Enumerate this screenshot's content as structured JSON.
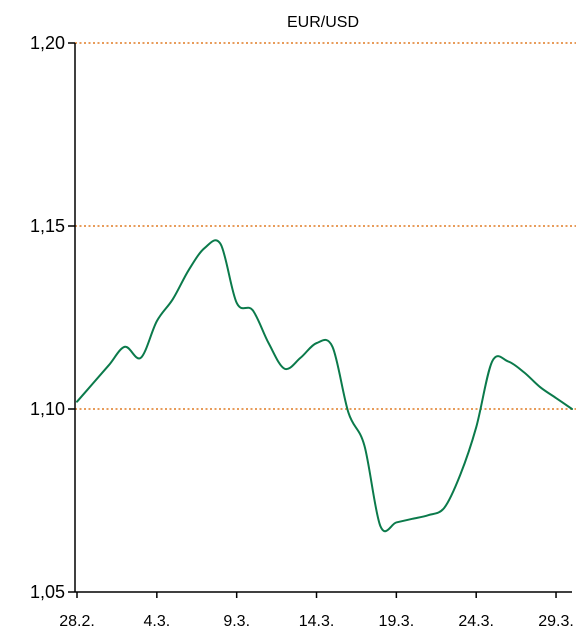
{
  "chart_data": {
    "type": "line",
    "title": "EUR/USD",
    "xlabel": "",
    "ylabel": "",
    "x_start": "28.2.",
    "x_end": "31.3.",
    "x_tick_labels": [
      "28.2.",
      "4.3.",
      "9.3.",
      "14.3.",
      "19.3.",
      "24.3.",
      "29.3."
    ],
    "y_ticks": [
      1.05,
      1.1,
      1.15,
      1.2
    ],
    "y_tick_labels": [
      "1,05",
      "1,10",
      "1,15",
      "1,20"
    ],
    "ylim": [
      1.05,
      1.2
    ],
    "grid": "horizontal dotted lines at 1,10 / 1,15 / 1,20",
    "colors": {
      "line": "#0b7a4b",
      "grid": "#e07b24",
      "axis": "#000000"
    },
    "series": [
      {
        "x": [
          "28.2.",
          "1.3.",
          "2.3.",
          "3.3.",
          "4.3.",
          "5.3.",
          "6.3.",
          "7.3.",
          "8.3.",
          "9.3.",
          "10.3.",
          "11.3.",
          "12.3.",
          "13.3.",
          "14.3.",
          "15.3.",
          "16.3.",
          "17.3.",
          "18.3.",
          "19.3.",
          "20.3.",
          "21.3.",
          "22.3.",
          "23.3.",
          "24.3.",
          "25.3.",
          "26.3.",
          "27.3.",
          "28.3.",
          "29.3.",
          "30.3.",
          "31.3."
        ],
        "values": [
          1.102,
          1.107,
          1.112,
          1.117,
          1.114,
          1.124,
          1.13,
          1.138,
          1.144,
          1.145,
          1.129,
          1.127,
          1.118,
          1.111,
          1.114,
          1.118,
          1.117,
          1.099,
          1.09,
          1.068,
          1.069,
          1.07,
          1.071,
          1.073,
          1.082,
          1.095,
          1.113,
          1.113,
          1.11,
          1.106,
          1.103,
          1.1
        ]
      }
    ]
  }
}
